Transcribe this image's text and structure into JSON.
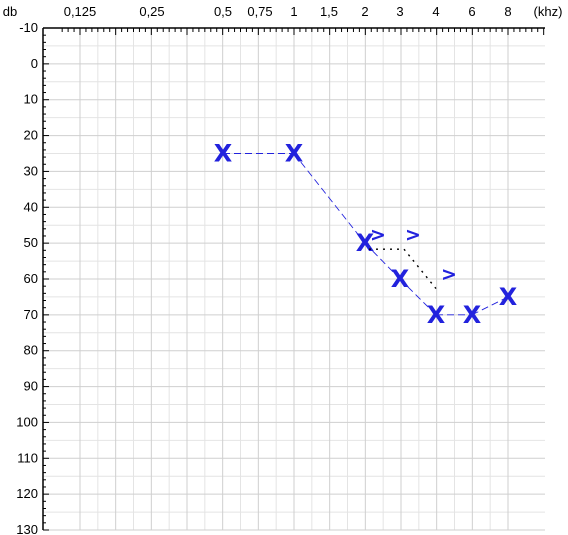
{
  "chart_data": {
    "type": "scatter",
    "title": "",
    "x_unit_label": "(khz)",
    "y_unit_label": "db",
    "x_tick_labels": [
      "0,125",
      "0,25",
      "0,5",
      "0,75",
      "1",
      "1,5",
      "2",
      "3",
      "4",
      "6",
      "8"
    ],
    "y_tick_labels": [
      "-10",
      "0",
      "10",
      "20",
      "30",
      "40",
      "50",
      "60",
      "70",
      "80",
      "90",
      "100",
      "110",
      "120",
      "130"
    ],
    "ylim": [
      -10,
      130
    ],
    "y_inverted": true,
    "grid": true,
    "series": [
      {
        "marker": "X",
        "color": "#2222dd",
        "line_style": "dashed",
        "points": [
          {
            "x": "0,5",
            "y": 25
          },
          {
            "x": "1",
            "y": 25
          },
          {
            "x": "2",
            "y": 50
          },
          {
            "x": "3",
            "y": 60
          },
          {
            "x": "4",
            "y": 70
          },
          {
            "x": "6",
            "y": 70
          },
          {
            "x": "8",
            "y": 65
          }
        ]
      },
      {
        "marker": ">",
        "color": "#2222dd",
        "line_style": "dotted",
        "points": [
          {
            "x": "2",
            "y": 50
          },
          {
            "x": "3",
            "y": 50
          },
          {
            "x": "4",
            "y": 61
          }
        ]
      }
    ]
  }
}
